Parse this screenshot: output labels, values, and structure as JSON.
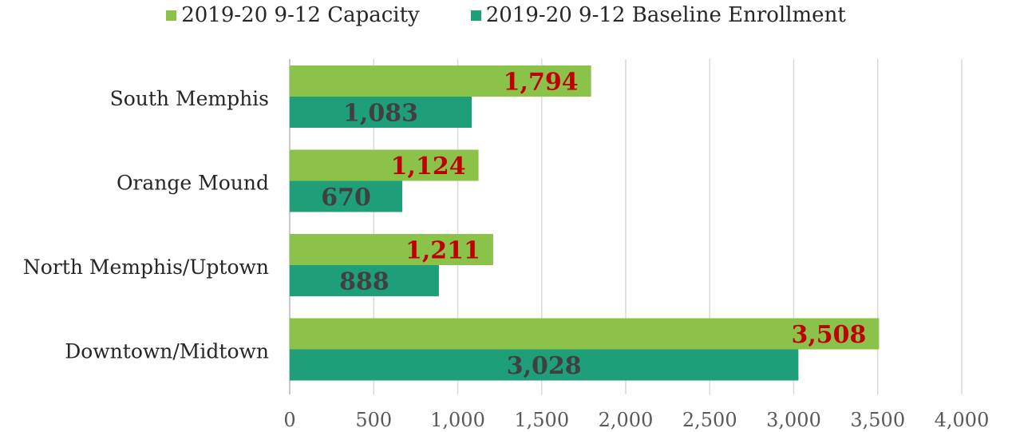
{
  "legend": {
    "series0": "2019-20 9-12 Capacity",
    "series1": "2019-20 9-12 Baseline Enrollment"
  },
  "colors": {
    "capacity": "#8BC34A",
    "enrollment": "#1F9E7A",
    "capacity_label": "#C00000",
    "enrollment_label": "#404040",
    "grid": "#D9D9D9"
  },
  "chart_data": {
    "type": "bar",
    "orientation": "horizontal",
    "categories": [
      "South Memphis",
      "Orange Mound",
      "North Memphis/Uptown",
      "Downtown/Midtown"
    ],
    "series": [
      {
        "name": "2019-20 9-12 Capacity",
        "values": [
          1794,
          1124,
          1211,
          3508
        ],
        "labels": [
          "1,794",
          "1,124",
          "1,211",
          "3,508"
        ]
      },
      {
        "name": "2019-20 9-12 Baseline Enrollment",
        "values": [
          1083,
          670,
          888,
          3028
        ],
        "labels": [
          "1,083",
          "670",
          "888",
          "3,028"
        ]
      }
    ],
    "xlim": [
      0,
      4000
    ],
    "xticks": [
      0,
      500,
      1000,
      1500,
      2000,
      2500,
      3000,
      3500,
      4000
    ],
    "xtick_labels": [
      "0",
      "500",
      "1,000",
      "1,500",
      "2,000",
      "2,500",
      "3,000",
      "3,500",
      "4,000"
    ],
    "grid": true,
    "legend_position": "top"
  }
}
